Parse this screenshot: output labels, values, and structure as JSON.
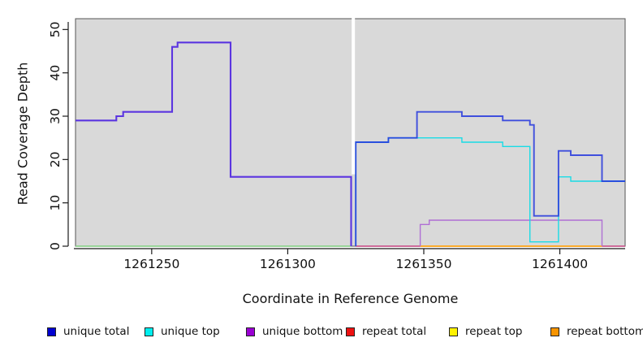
{
  "figure": {
    "background": "#ffffff",
    "panel_background": "#d9d9d9",
    "axis_color": "#1a1a1a",
    "text_color": "#111111"
  },
  "chart_data": {
    "type": "line",
    "subtype": "step-coverage-plot",
    "title": "",
    "xlabel": "Coordinate in Reference Genome",
    "ylabel": "Read Coverage Depth",
    "xlim": [
      1261222,
      1261424
    ],
    "ylim": [
      0,
      52.5
    ],
    "x_ticks": [
      1261250,
      1261300,
      1261350,
      1261400
    ],
    "y_ticks": [
      0,
      10,
      20,
      30,
      40,
      50
    ],
    "grid": false,
    "legend_position": "bottom",
    "legend": [
      {
        "label": "unique total",
        "color": "#0000d0"
      },
      {
        "label": "unique top",
        "color": "#00eeee"
      },
      {
        "label": "unique bottom",
        "color": "#9a00d3"
      },
      {
        "label": "repeat total",
        "color": "#ee1111"
      },
      {
        "label": "repeat top",
        "color": "#fff200"
      },
      {
        "label": "repeat bottom",
        "color": "#f79400"
      }
    ],
    "gap_marker": {
      "x": 1261324.1,
      "y_from": 16.6,
      "y_to": 52.5,
      "color": "#ffffff",
      "width": 4
    },
    "series": [
      {
        "name": "zero-baseline-left-blend",
        "color": "#7fce7f",
        "width": 1.4,
        "opacity": 1,
        "points": [
          [
            1261222,
            0
          ],
          [
            1261323.3,
            0
          ]
        ]
      },
      {
        "name": "zero-baseline-repeat-total-a",
        "color": "#c4407f",
        "width": 1.4,
        "opacity": 1,
        "points": [
          [
            1261325,
            0
          ],
          [
            1261348.7,
            0
          ]
        ]
      },
      {
        "name": "zero-baseline-repeat-bottom",
        "color": "#ffa011",
        "width": 1.8,
        "opacity": 1,
        "points": [
          [
            1261348.7,
            0
          ],
          [
            1261415.5,
            0
          ]
        ]
      },
      {
        "name": "zero-baseline-repeat-total-b",
        "color": "#c4407f",
        "width": 1.4,
        "opacity": 1,
        "points": [
          [
            1261415.5,
            0
          ],
          [
            1261424,
            0
          ]
        ]
      },
      {
        "name": "unique-bottom-right",
        "color": "#b06fd4",
        "width": 1.4,
        "opacity": 1,
        "points": [
          [
            1261348.7,
            0
          ],
          [
            1261348.7,
            5
          ],
          [
            1261352,
            5
          ],
          [
            1261352,
            6
          ],
          [
            1261415.5,
            6
          ],
          [
            1261415.5,
            0
          ]
        ]
      },
      {
        "name": "unique-top-right",
        "color": "#19dce6",
        "width": 1.4,
        "opacity": 1,
        "points": [
          [
            1261325,
            0
          ],
          [
            1261325,
            24
          ],
          [
            1261337,
            24
          ],
          [
            1261337,
            25
          ],
          [
            1261364,
            25
          ],
          [
            1261364,
            24
          ],
          [
            1261379,
            24
          ],
          [
            1261379,
            23
          ],
          [
            1261389,
            23
          ],
          [
            1261389,
            1
          ],
          [
            1261399.5,
            1
          ],
          [
            1261399.5,
            16
          ],
          [
            1261404,
            16
          ],
          [
            1261404,
            15
          ],
          [
            1261424,
            15
          ]
        ]
      },
      {
        "name": "unique-total-and-bottom-left",
        "color": "#5b35e0",
        "width": 2.1,
        "opacity": 1,
        "points": [
          [
            1261222,
            29
          ],
          [
            1261237,
            29
          ],
          [
            1261237,
            30
          ],
          [
            1261239.5,
            30
          ],
          [
            1261239.5,
            31
          ],
          [
            1261257.5,
            31
          ],
          [
            1261257.5,
            46
          ],
          [
            1261259.5,
            46
          ],
          [
            1261259.5,
            47
          ],
          [
            1261279,
            47
          ],
          [
            1261279,
            16
          ],
          [
            1261323.3,
            16
          ],
          [
            1261323.3,
            0
          ]
        ]
      },
      {
        "name": "unique-total-right",
        "color": "#2336dd",
        "width": 1.9,
        "opacity": 0.85,
        "points": [
          [
            1261325,
            0
          ],
          [
            1261325,
            24
          ],
          [
            1261337,
            24
          ],
          [
            1261337,
            25
          ],
          [
            1261347.5,
            25
          ],
          [
            1261347.5,
            31
          ],
          [
            1261364,
            31
          ],
          [
            1261364,
            30
          ],
          [
            1261379,
            30
          ],
          [
            1261379,
            29
          ],
          [
            1261389,
            29
          ],
          [
            1261389,
            28
          ],
          [
            1261390.5,
            28
          ],
          [
            1261390.5,
            7
          ],
          [
            1261399.5,
            7
          ],
          [
            1261399.5,
            22
          ],
          [
            1261404,
            22
          ],
          [
            1261404,
            21
          ],
          [
            1261415.5,
            21
          ],
          [
            1261415.5,
            15
          ],
          [
            1261424,
            15
          ]
        ]
      }
    ]
  }
}
